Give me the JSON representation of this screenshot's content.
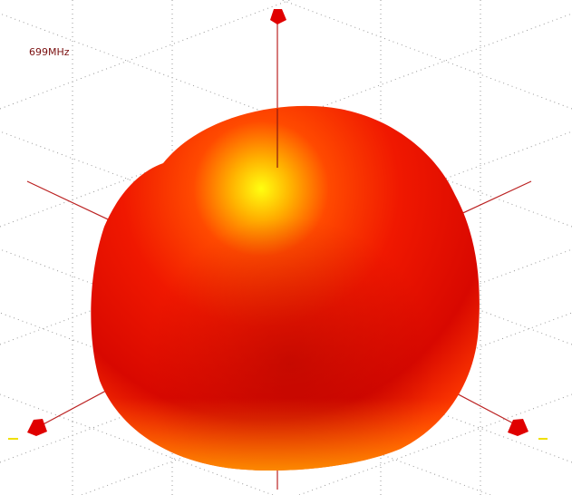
{
  "label": "699MHz"
}
